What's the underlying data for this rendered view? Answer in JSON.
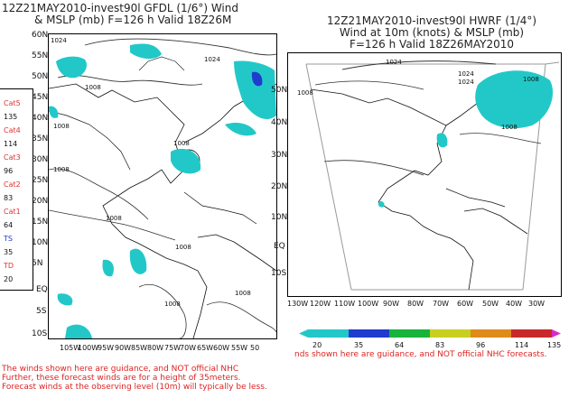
{
  "left_panel": {
    "title_line1": "12Z21MAY2010-invest90l GFDL (1/6°) Wind",
    "title_line2": "& MSLP (mb) F=126 h Valid 18Z26M",
    "lat_labels": [
      "60N",
      "55N",
      "50N",
      "45N",
      "40N",
      "35N",
      "30N",
      "25N",
      "20N",
      "15N",
      "10N",
      "5N",
      "EQ",
      "5S",
      "10S"
    ],
    "lon_labels": [
      "105W",
      "100W",
      "95W",
      "90W",
      "85W",
      "80W",
      "75W",
      "70W",
      "65W",
      "60W",
      "55W",
      "50"
    ],
    "pressure_labels": [
      "1024",
      "1008",
      "1024",
      "1008",
      "1008",
      "1008",
      "1008",
      "1008",
      "1008",
      "1008"
    ]
  },
  "right_panel": {
    "title_line1": "12Z21MAY2010-invest90l HWRF (1/4°)",
    "title_line2": "Wind at 10m (knots) & MSLP (mb)",
    "title_line3": "F=126 h Valid 18Z26MAY2010",
    "lat_labels": [
      "50N",
      "40N",
      "30N",
      "20N",
      "10N",
      "EQ",
      "10S"
    ],
    "lon_labels": [
      "130W",
      "120W",
      "110W",
      "100W",
      "90W",
      "80W",
      "70W",
      "60W",
      "50W",
      "40W",
      "30W"
    ],
    "pressure_labels": [
      "1024",
      "1008",
      "1024",
      "1024",
      "1008",
      "1008"
    ]
  },
  "legend_vertical": {
    "items": [
      {
        "text": "Cat5",
        "kind": "cat"
      },
      {
        "text": "135",
        "kind": "num"
      },
      {
        "text": "Cat4",
        "kind": "cat"
      },
      {
        "text": "114",
        "kind": "num"
      },
      {
        "text": "Cat3",
        "kind": "cat"
      },
      {
        "text": "96",
        "kind": "num"
      },
      {
        "text": "Cat2",
        "kind": "cat"
      },
      {
        "text": "83",
        "kind": "num"
      },
      {
        "text": "Cat1",
        "kind": "cat"
      },
      {
        "text": "64",
        "kind": "num"
      },
      {
        "text": "TS",
        "kind": "cat"
      },
      {
        "text": "35",
        "kind": "num"
      },
      {
        "text": "TD",
        "kind": "cat"
      },
      {
        "text": "20",
        "kind": "num"
      }
    ]
  },
  "color_bar": {
    "labels": [
      "20",
      "35",
      "64",
      "83",
      "96",
      "114",
      "135"
    ],
    "colors": [
      "#22c8c8",
      "#1f3ccf",
      "#17b33a",
      "#c8cf20",
      "#e08a1c",
      "#c8282a",
      "#d82ac8"
    ]
  },
  "disclaimers": {
    "right": "nds shown here are guidance, and NOT official NHC forecasts.",
    "line1": "The winds shown here are guidance, and NOT official NHC",
    "line2": "Further, these forecast winds are for a height of 35meters.",
    "line3": "Forecast winds at the observing level (10m) will typically be less."
  }
}
